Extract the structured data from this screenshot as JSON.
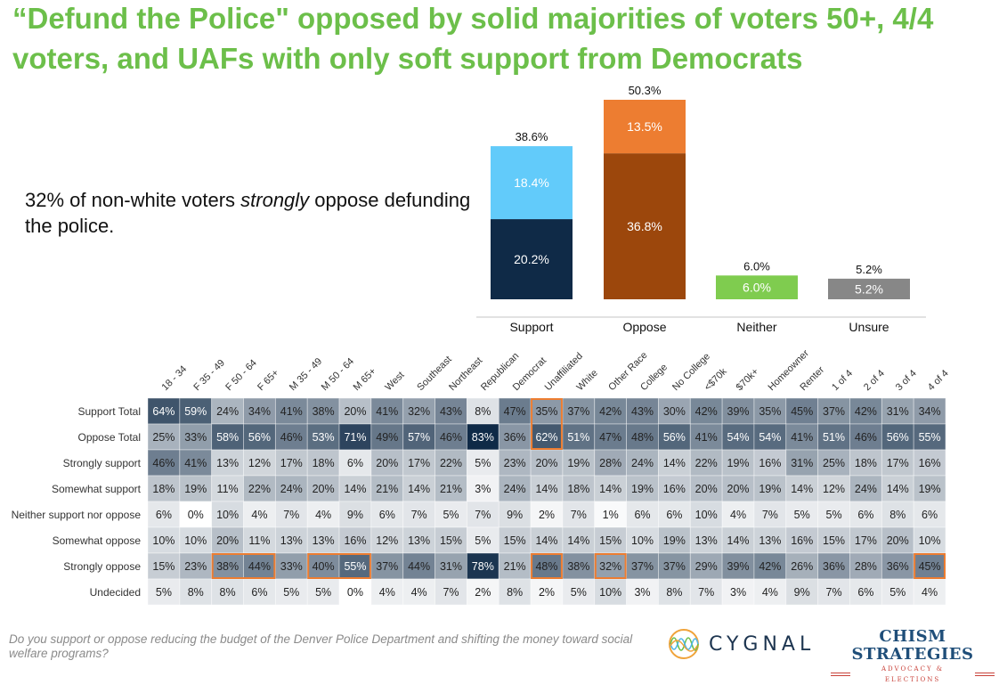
{
  "slide": {
    "title": "“Defund the Police\" opposed by solid majorities of voters 50+, 4/4 voters, and UAFs with only soft support from Democrats",
    "callout_pre": "32% of non-white voters ",
    "callout_em": "strongly",
    "callout_post": " oppose defunding the police.",
    "footnote": "Do you support or oppose reducing the budget of the Denver Police Department and shifting the money toward social welfare programs?",
    "logos": {
      "cygnal": "CYGNAL",
      "chism_name": "CHISM STRATEGIES",
      "chism_sub": "ADVOCACY & ELECTIONS"
    }
  },
  "colors": {
    "title_green": "#6cbf4a",
    "strong_support": "#0f2a47",
    "somewhat_support": "#62cbfa",
    "strong_oppose": "#9c470c",
    "somewhat_oppose": "#ed7d31",
    "neither": "#7fcc4f",
    "unsure": "#878787",
    "heat_dark": "#0f2a47",
    "highlight": "#ed7d31"
  },
  "chart_data": [
    {
      "type": "bar",
      "stacked": true,
      "categories": [
        "Support",
        "Oppose",
        "Neither",
        "Unsure"
      ],
      "totals": [
        "38.6%",
        "50.3%",
        "6.0%",
        "5.2%"
      ],
      "total_values": [
        38.6,
        50.3,
        6.0,
        5.2
      ],
      "segments": [
        [
          {
            "name": "Strongly support",
            "value": 20.2,
            "label": "20.2%",
            "color_key": "strong_support"
          },
          {
            "name": "Somewhat support",
            "value": 18.4,
            "label": "18.4%",
            "color_key": "somewhat_support"
          }
        ],
        [
          {
            "name": "Strongly oppose",
            "value": 36.8,
            "label": "36.8%",
            "color_key": "strong_oppose"
          },
          {
            "name": "Somewhat oppose",
            "value": 13.5,
            "label": "13.5%",
            "color_key": "somewhat_oppose"
          }
        ],
        [
          {
            "name": "Neither",
            "value": 6.0,
            "label": "6.0%",
            "color_key": "neither"
          }
        ],
        [
          {
            "name": "Unsure",
            "value": 5.2,
            "label": "5.2%",
            "color_key": "unsure"
          }
        ]
      ],
      "ylim": [
        0,
        55
      ],
      "grid": false,
      "legend": "none"
    },
    {
      "type": "heatmap",
      "columns": [
        "18 - 34",
        "F 35 - 49",
        "F 50 - 64",
        "F 65+",
        "M 35 - 49",
        "M 50 - 64",
        "M 65+",
        "West",
        "Southeast",
        "Northeast",
        "Republican",
        "Democrat",
        "Unaffiliated",
        "White",
        "Other Race",
        "College",
        "No College",
        "<$70k",
        "$70k+",
        "Homeowner",
        "Renter",
        "1 of 4",
        "2 of 4",
        "3 of 4",
        "4 of 4"
      ],
      "rows": [
        "Support Total",
        "Oppose Total",
        "Strongly support",
        "Somewhat support",
        "Neither support nor oppose",
        "Somewhat oppose",
        "Strongly oppose",
        "Undecided"
      ],
      "values": [
        [
          64,
          59,
          24,
          34,
          41,
          38,
          20,
          41,
          32,
          43,
          8,
          47,
          35,
          37,
          42,
          43,
          30,
          42,
          39,
          35,
          45,
          37,
          42,
          31,
          34
        ],
        [
          25,
          33,
          58,
          56,
          46,
          53,
          71,
          49,
          57,
          46,
          83,
          36,
          62,
          51,
          47,
          48,
          56,
          41,
          54,
          54,
          41,
          51,
          46,
          56,
          55
        ],
        [
          46,
          41,
          13,
          12,
          17,
          18,
          6,
          20,
          17,
          22,
          5,
          23,
          20,
          19,
          28,
          24,
          14,
          22,
          19,
          16,
          31,
          25,
          18,
          17,
          16
        ],
        [
          18,
          19,
          11,
          22,
          24,
          20,
          14,
          21,
          14,
          21,
          3,
          24,
          14,
          18,
          14,
          19,
          16,
          20,
          20,
          19,
          14,
          12,
          24,
          14,
          19
        ],
        [
          6,
          0,
          10,
          4,
          7,
          4,
          9,
          6,
          7,
          5,
          7,
          9,
          2,
          7,
          1,
          6,
          6,
          10,
          4,
          7,
          5,
          5,
          6,
          8,
          6
        ],
        [
          10,
          10,
          20,
          11,
          13,
          13,
          16,
          12,
          13,
          15,
          5,
          15,
          14,
          14,
          15,
          10,
          19,
          13,
          14,
          13,
          16,
          15,
          17,
          20,
          10
        ],
        [
          15,
          23,
          38,
          44,
          33,
          40,
          55,
          37,
          44,
          31,
          78,
          21,
          48,
          38,
          32,
          37,
          37,
          29,
          39,
          42,
          26,
          36,
          28,
          36,
          45
        ],
        [
          5,
          8,
          8,
          6,
          5,
          5,
          0,
          4,
          4,
          7,
          2,
          8,
          2,
          5,
          10,
          3,
          8,
          7,
          3,
          4,
          9,
          7,
          6,
          5,
          4
        ]
      ],
      "value_suffix": "%",
      "color_scale_max": 83,
      "highlights": [
        {
          "rows": [
            0,
            1
          ],
          "cols": [
            12,
            12
          ]
        },
        {
          "rows": [
            6,
            6
          ],
          "cols": [
            2,
            3
          ]
        },
        {
          "rows": [
            6,
            6
          ],
          "cols": [
            5,
            6
          ]
        },
        {
          "rows": [
            6,
            6
          ],
          "cols": [
            12,
            12
          ]
        },
        {
          "rows": [
            6,
            6
          ],
          "cols": [
            14,
            14
          ]
        },
        {
          "rows": [
            6,
            6
          ],
          "cols": [
            24,
            24
          ]
        }
      ]
    }
  ]
}
